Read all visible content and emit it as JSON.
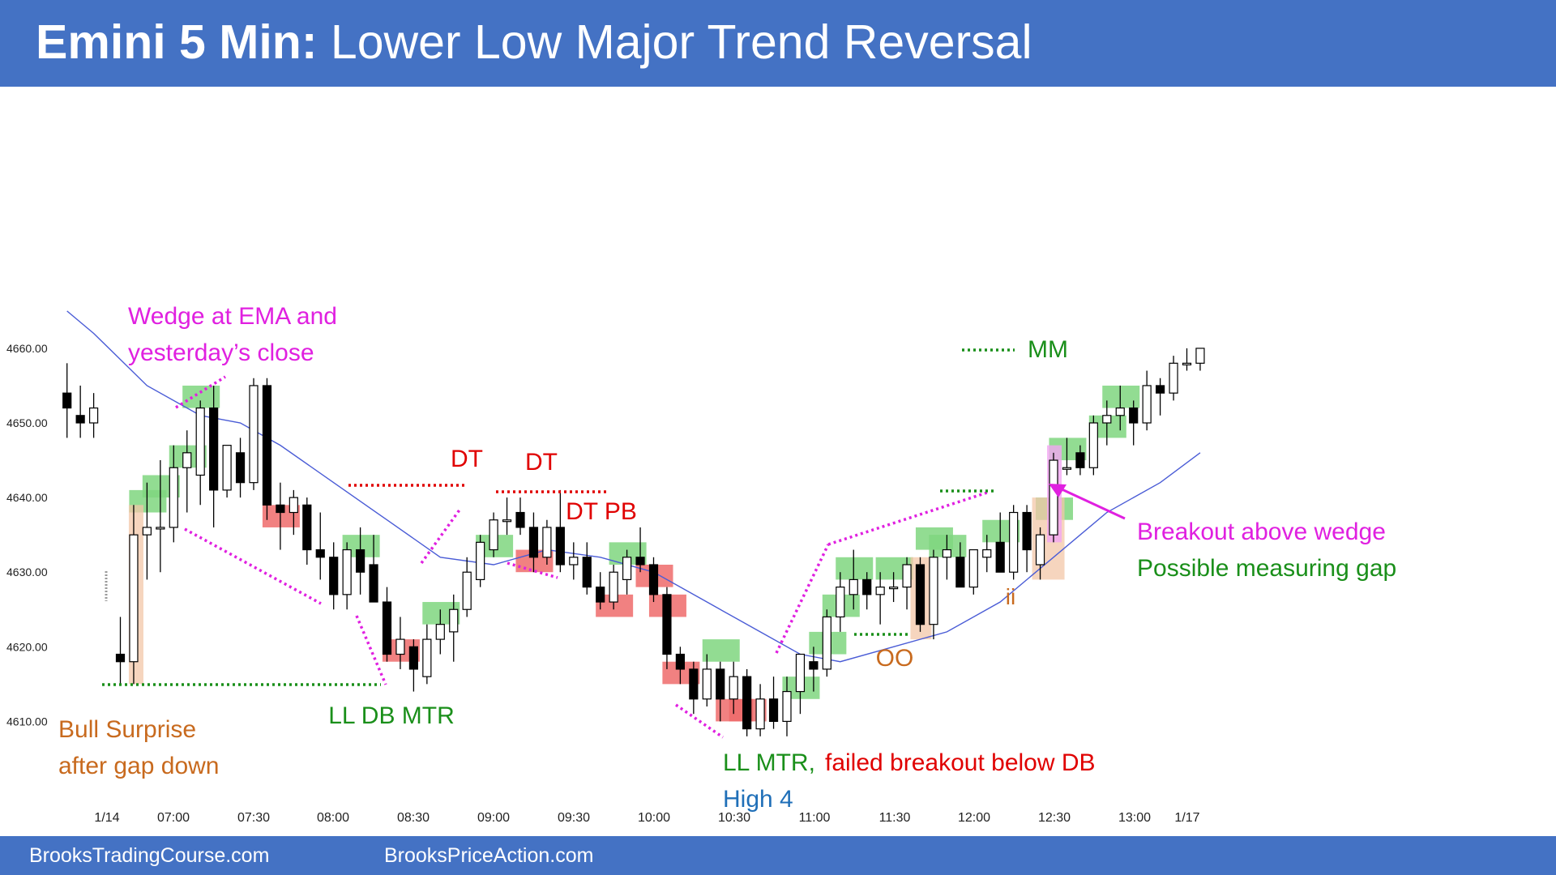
{
  "header": {
    "title_bold": "Emini 5 Min:",
    "title_rest": "Lower Low Major Trend Reversal"
  },
  "footer": {
    "left": "BrooksTradingCourse.com",
    "right": "BrooksPriceAction.com"
  },
  "colors": {
    "header": "#4472c4",
    "ema": "#4a5cd6",
    "bull_bar": "#ffffff",
    "bear_bar": "#000000",
    "green_highlight": "#7fd67f",
    "red_highlight": "#ee6b6b",
    "magenta": "#e020e0",
    "dark_green": "#1a8f1a",
    "red_text": "#e00000",
    "orange_text": "#c86a1e",
    "blue_text": "#1f6fb8"
  },
  "chart_data": {
    "type": "candlestick",
    "title": "Emini 5 Min: Lower Low Major Trend Reversal",
    "ylim": [
      4606,
      4666
    ],
    "yticks": [
      "4610.00",
      "4620.00",
      "4630.00",
      "4640.00",
      "4650.00",
      "4660.00"
    ],
    "xticks": [
      "1/14",
      "07:00",
      "07:30",
      "08:00",
      "08:30",
      "09:00",
      "09:30",
      "10:00",
      "10:30",
      "11:00",
      "11:30",
      "12:00",
      "12:30",
      "13:00",
      "1/17"
    ],
    "candles": [
      {
        "t": -4,
        "o": 4654,
        "h": 4658,
        "l": 4648,
        "c": 4652
      },
      {
        "t": -3,
        "o": 4651,
        "h": 4655,
        "l": 4648,
        "c": 4650
      },
      {
        "t": -2,
        "o": 4650,
        "h": 4654,
        "l": 4648,
        "c": 4652
      },
      {
        "t": 0,
        "o": 4619,
        "h": 4624,
        "l": 4615,
        "c": 4618
      },
      {
        "t": 1,
        "o": 4618,
        "h": 4639,
        "l": 4615,
        "c": 4635
      },
      {
        "t": 2,
        "o": 4635,
        "h": 4642,
        "l": 4629,
        "c": 4636
      },
      {
        "t": 3,
        "o": 4636,
        "h": 4645,
        "l": 4630,
        "c": 4636
      },
      {
        "t": 4,
        "o": 4636,
        "h": 4647,
        "l": 4634,
        "c": 4644
      },
      {
        "t": 5,
        "o": 4644,
        "h": 4649,
        "l": 4638,
        "c": 4646
      },
      {
        "t": 6,
        "o": 4643,
        "h": 4653,
        "l": 4639,
        "c": 4652
      },
      {
        "t": 7,
        "o": 4652,
        "h": 4655,
        "l": 4636,
        "c": 4641
      },
      {
        "t": 8,
        "o": 4641,
        "h": 4647,
        "l": 4640,
        "c": 4647
      },
      {
        "t": 9,
        "o": 4646,
        "h": 4648,
        "l": 4640,
        "c": 4642
      },
      {
        "t": 10,
        "o": 4642,
        "h": 4656,
        "l": 4641,
        "c": 4655
      },
      {
        "t": 11,
        "o": 4655,
        "h": 4656,
        "l": 4637,
        "c": 4639
      },
      {
        "t": 12,
        "o": 4639,
        "h": 4642,
        "l": 4633,
        "c": 4638
      },
      {
        "t": 13,
        "o": 4638,
        "h": 4641,
        "l": 4635,
        "c": 4640
      },
      {
        "t": 14,
        "o": 4639,
        "h": 4640,
        "l": 4631,
        "c": 4633
      },
      {
        "t": 15,
        "o": 4633,
        "h": 4638,
        "l": 4629,
        "c": 4632
      },
      {
        "t": 16,
        "o": 4632,
        "h": 4634,
        "l": 4625,
        "c": 4627
      },
      {
        "t": 17,
        "o": 4627,
        "h": 4634,
        "l": 4625,
        "c": 4633
      },
      {
        "t": 18,
        "o": 4633,
        "h": 4636,
        "l": 4627,
        "c": 4630
      },
      {
        "t": 19,
        "o": 4631,
        "h": 4635,
        "l": 4626,
        "c": 4626
      },
      {
        "t": 20,
        "o": 4626,
        "h": 4628,
        "l": 4618,
        "c": 4619
      },
      {
        "t": 21,
        "o": 4619,
        "h": 4624,
        "l": 4617,
        "c": 4621
      },
      {
        "t": 22,
        "o": 4620,
        "h": 4621,
        "l": 4614,
        "c": 4617
      },
      {
        "t": 23,
        "o": 4616,
        "h": 4623,
        "l": 4615,
        "c": 4621
      },
      {
        "t": 24,
        "o": 4621,
        "h": 4625,
        "l": 4619,
        "c": 4623
      },
      {
        "t": 25,
        "o": 4622,
        "h": 4627,
        "l": 4618,
        "c": 4625
      },
      {
        "t": 26,
        "o": 4625,
        "h": 4632,
        "l": 4624,
        "c": 4630
      },
      {
        "t": 27,
        "o": 4629,
        "h": 4635,
        "l": 4628,
        "c": 4634
      },
      {
        "t": 28,
        "o": 4633,
        "h": 4638,
        "l": 4632,
        "c": 4637
      },
      {
        "t": 29,
        "o": 4637,
        "h": 4640,
        "l": 4635,
        "c": 4637
      },
      {
        "t": 30,
        "o": 4638,
        "h": 4640,
        "l": 4635,
        "c": 4636
      },
      {
        "t": 31,
        "o": 4636,
        "h": 4638,
        "l": 4630,
        "c": 4632
      },
      {
        "t": 32,
        "o": 4632,
        "h": 4637,
        "l": 4631,
        "c": 4636
      },
      {
        "t": 33,
        "o": 4636,
        "h": 4641,
        "l": 4630,
        "c": 4631
      },
      {
        "t": 34,
        "o": 4631,
        "h": 4634,
        "l": 4629,
        "c": 4632
      },
      {
        "t": 35,
        "o": 4632,
        "h": 4634,
        "l": 4627,
        "c": 4628
      },
      {
        "t": 36,
        "o": 4628,
        "h": 4630,
        "l": 4625,
        "c": 4626
      },
      {
        "t": 37,
        "o": 4626,
        "h": 4631,
        "l": 4625,
        "c": 4630
      },
      {
        "t": 38,
        "o": 4629,
        "h": 4633,
        "l": 4627,
        "c": 4632
      },
      {
        "t": 39,
        "o": 4632,
        "h": 4636,
        "l": 4630,
        "c": 4631
      },
      {
        "t": 40,
        "o": 4631,
        "h": 4632,
        "l": 4626,
        "c": 4627
      },
      {
        "t": 41,
        "o": 4627,
        "h": 4628,
        "l": 4617,
        "c": 4619
      },
      {
        "t": 42,
        "o": 4619,
        "h": 4620,
        "l": 4615,
        "c": 4617
      },
      {
        "t": 43,
        "o": 4617,
        "h": 4618,
        "l": 4611,
        "c": 4613
      },
      {
        "t": 44,
        "o": 4613,
        "h": 4619,
        "l": 4612,
        "c": 4617
      },
      {
        "t": 45,
        "o": 4617,
        "h": 4618,
        "l": 4610,
        "c": 4613
      },
      {
        "t": 46,
        "o": 4613,
        "h": 4618,
        "l": 4611,
        "c": 4616
      },
      {
        "t": 47,
        "o": 4616,
        "h": 4617,
        "l": 4608,
        "c": 4609
      },
      {
        "t": 48,
        "o": 4609,
        "h": 4615,
        "l": 4608,
        "c": 4613
      },
      {
        "t": 49,
        "o": 4613,
        "h": 4616,
        "l": 4609,
        "c": 4610
      },
      {
        "t": 50,
        "o": 4610,
        "h": 4616,
        "l": 4608,
        "c": 4614
      },
      {
        "t": 51,
        "o": 4614,
        "h": 4619,
        "l": 4611,
        "c": 4619
      },
      {
        "t": 52,
        "o": 4618,
        "h": 4620,
        "l": 4614,
        "c": 4617
      },
      {
        "t": 53,
        "o": 4617,
        "h": 4625,
        "l": 4616,
        "c": 4624
      },
      {
        "t": 54,
        "o": 4624,
        "h": 4630,
        "l": 4622,
        "c": 4628
      },
      {
        "t": 55,
        "o": 4627,
        "h": 4633,
        "l": 4625,
        "c": 4629
      },
      {
        "t": 56,
        "o": 4629,
        "h": 4630,
        "l": 4625,
        "c": 4627
      },
      {
        "t": 57,
        "o": 4627,
        "h": 4630,
        "l": 4623,
        "c": 4628
      },
      {
        "t": 58,
        "o": 4628,
        "h": 4630,
        "l": 4626,
        "c": 4628
      },
      {
        "t": 59,
        "o": 4628,
        "h": 4632,
        "l": 4625,
        "c": 4631
      },
      {
        "t": 60,
        "o": 4631,
        "h": 4632,
        "l": 4622,
        "c": 4623
      },
      {
        "t": 61,
        "o": 4623,
        "h": 4633,
        "l": 4621,
        "c": 4632
      },
      {
        "t": 62,
        "o": 4632,
        "h": 4635,
        "l": 4629,
        "c": 4633
      },
      {
        "t": 63,
        "o": 4632,
        "h": 4634,
        "l": 4628,
        "c": 4628
      },
      {
        "t": 64,
        "o": 4628,
        "h": 4633,
        "l": 4627,
        "c": 4633
      },
      {
        "t": 65,
        "o": 4632,
        "h": 4635,
        "l": 4630,
        "c": 4633
      },
      {
        "t": 66,
        "o": 4634,
        "h": 4638,
        "l": 4630,
        "c": 4630
      },
      {
        "t": 67,
        "o": 4630,
        "h": 4639,
        "l": 4629,
        "c": 4638
      },
      {
        "t": 68,
        "o": 4638,
        "h": 4639,
        "l": 4630,
        "c": 4633
      },
      {
        "t": 69,
        "o": 4631,
        "h": 4636,
        "l": 4629,
        "c": 4635
      },
      {
        "t": 70,
        "o": 4635,
        "h": 4646,
        "l": 4634,
        "c": 4645
      },
      {
        "t": 71,
        "o": 4644,
        "h": 4648,
        "l": 4643,
        "c": 4644
      },
      {
        "t": 72,
        "o": 4646,
        "h": 4647,
        "l": 4643,
        "c": 4644
      },
      {
        "t": 73,
        "o": 4644,
        "h": 4651,
        "l": 4643,
        "c": 4650
      },
      {
        "t": 74,
        "o": 4650,
        "h": 4653,
        "l": 4647,
        "c": 4651
      },
      {
        "t": 75,
        "o": 4651,
        "h": 4655,
        "l": 4649,
        "c": 4652
      },
      {
        "t": 76,
        "o": 4652,
        "h": 4653,
        "l": 4647,
        "c": 4650
      },
      {
        "t": 77,
        "o": 4650,
        "h": 4657,
        "l": 4649,
        "c": 4655
      },
      {
        "t": 78,
        "o": 4655,
        "h": 4656,
        "l": 4651,
        "c": 4654
      },
      {
        "t": 79,
        "o": 4654,
        "h": 4659,
        "l": 4653,
        "c": 4658
      },
      {
        "t": 80,
        "o": 4658,
        "h": 4660,
        "l": 4657,
        "c": 4658
      },
      {
        "t": 81,
        "o": 4658,
        "h": 4660,
        "l": 4657,
        "c": 4660
      }
    ],
    "ema": [
      [
        -4,
        4665
      ],
      [
        -2,
        4662
      ],
      [
        2,
        4655
      ],
      [
        6,
        4651
      ],
      [
        9,
        4650
      ],
      [
        12,
        4647
      ],
      [
        16,
        4642
      ],
      [
        20,
        4637
      ],
      [
        24,
        4632
      ],
      [
        28,
        4631
      ],
      [
        32,
        4633
      ],
      [
        36,
        4632
      ],
      [
        40,
        4630
      ],
      [
        44,
        4626
      ],
      [
        48,
        4622
      ],
      [
        51,
        4619
      ],
      [
        54,
        4618
      ],
      [
        58,
        4620
      ],
      [
        62,
        4622
      ],
      [
        66,
        4626
      ],
      [
        70,
        4632
      ],
      [
        74,
        4638
      ],
      [
        78,
        4642
      ],
      [
        81,
        4646
      ]
    ],
    "highlights": [
      {
        "t": 2,
        "lo": 4638,
        "hi": 4641,
        "color": "green"
      },
      {
        "t": 3,
        "lo": 4640,
        "hi": 4643,
        "color": "green"
      },
      {
        "t": 5,
        "lo": 4644,
        "hi": 4647,
        "color": "green"
      },
      {
        "t": 6,
        "lo": 4652,
        "hi": 4655,
        "color": "green"
      },
      {
        "t": 12,
        "lo": 4636,
        "hi": 4639,
        "color": "red"
      },
      {
        "t": 18,
        "lo": 4632,
        "hi": 4635,
        "color": "green"
      },
      {
        "t": 21,
        "lo": 4618,
        "hi": 4621,
        "color": "red"
      },
      {
        "t": 24,
        "lo": 4623,
        "hi": 4626,
        "color": "green"
      },
      {
        "t": 28,
        "lo": 4632,
        "hi": 4635,
        "color": "green"
      },
      {
        "t": 31,
        "lo": 4630,
        "hi": 4633,
        "color": "red"
      },
      {
        "t": 37,
        "lo": 4624,
        "hi": 4627,
        "color": "red"
      },
      {
        "t": 38,
        "lo": 4631,
        "hi": 4634,
        "color": "green"
      },
      {
        "t": 40,
        "lo": 4628,
        "hi": 4631,
        "color": "red"
      },
      {
        "t": 41,
        "lo": 4624,
        "hi": 4627,
        "color": "red"
      },
      {
        "t": 42,
        "lo": 4615,
        "hi": 4618,
        "color": "red"
      },
      {
        "t": 45,
        "lo": 4618,
        "hi": 4621,
        "color": "green"
      },
      {
        "t": 46,
        "lo": 4610,
        "hi": 4613,
        "color": "red"
      },
      {
        "t": 47,
        "lo": 4610,
        "hi": 4613,
        "color": "red"
      },
      {
        "t": 51,
        "lo": 4613,
        "hi": 4616,
        "color": "green"
      },
      {
        "t": 53,
        "lo": 4619,
        "hi": 4622,
        "color": "green"
      },
      {
        "t": 54,
        "lo": 4624,
        "hi": 4627,
        "color": "green"
      },
      {
        "t": 55,
        "lo": 4629,
        "hi": 4632,
        "color": "green"
      },
      {
        "t": 58,
        "lo": 4629,
        "hi": 4632,
        "color": "green"
      },
      {
        "t": 61,
        "lo": 4633,
        "hi": 4636,
        "color": "green"
      },
      {
        "t": 62,
        "lo": 4632,
        "hi": 4635,
        "color": "green"
      },
      {
        "t": 66,
        "lo": 4634,
        "hi": 4637,
        "color": "green"
      },
      {
        "t": 70,
        "lo": 4637,
        "hi": 4640,
        "color": "green"
      },
      {
        "t": 71,
        "lo": 4645,
        "hi": 4648,
        "color": "green"
      },
      {
        "t": 74,
        "lo": 4648,
        "hi": 4651,
        "color": "green"
      },
      {
        "t": 75,
        "lo": 4652,
        "hi": 4655,
        "color": "green"
      }
    ],
    "annotations": [
      {
        "text": "Wedge at EMA and",
        "color": "magenta"
      },
      {
        "text": "yesterday’s close",
        "color": "magenta"
      },
      {
        "text": "DT",
        "color": "red"
      },
      {
        "text": "DT",
        "color": "red"
      },
      {
        "text": "DT PB",
        "color": "red"
      },
      {
        "text": "MM",
        "color": "green"
      },
      {
        "text": "Breakout above wedge",
        "color": "magenta"
      },
      {
        "text": "Possible measuring gap",
        "color": "green"
      },
      {
        "text": "ii",
        "color": "orange"
      },
      {
        "text": "OO",
        "color": "orange"
      },
      {
        "text": "LL DB MTR",
        "color": "green"
      },
      {
        "text": "Bull Surprise",
        "color": "orange"
      },
      {
        "text": "after gap down",
        "color": "orange"
      },
      {
        "text": "LL MTR,",
        "color": "green"
      },
      {
        "text": "failed breakout below DB",
        "color": "red"
      },
      {
        "text": "High 4",
        "color": "blue"
      }
    ]
  }
}
